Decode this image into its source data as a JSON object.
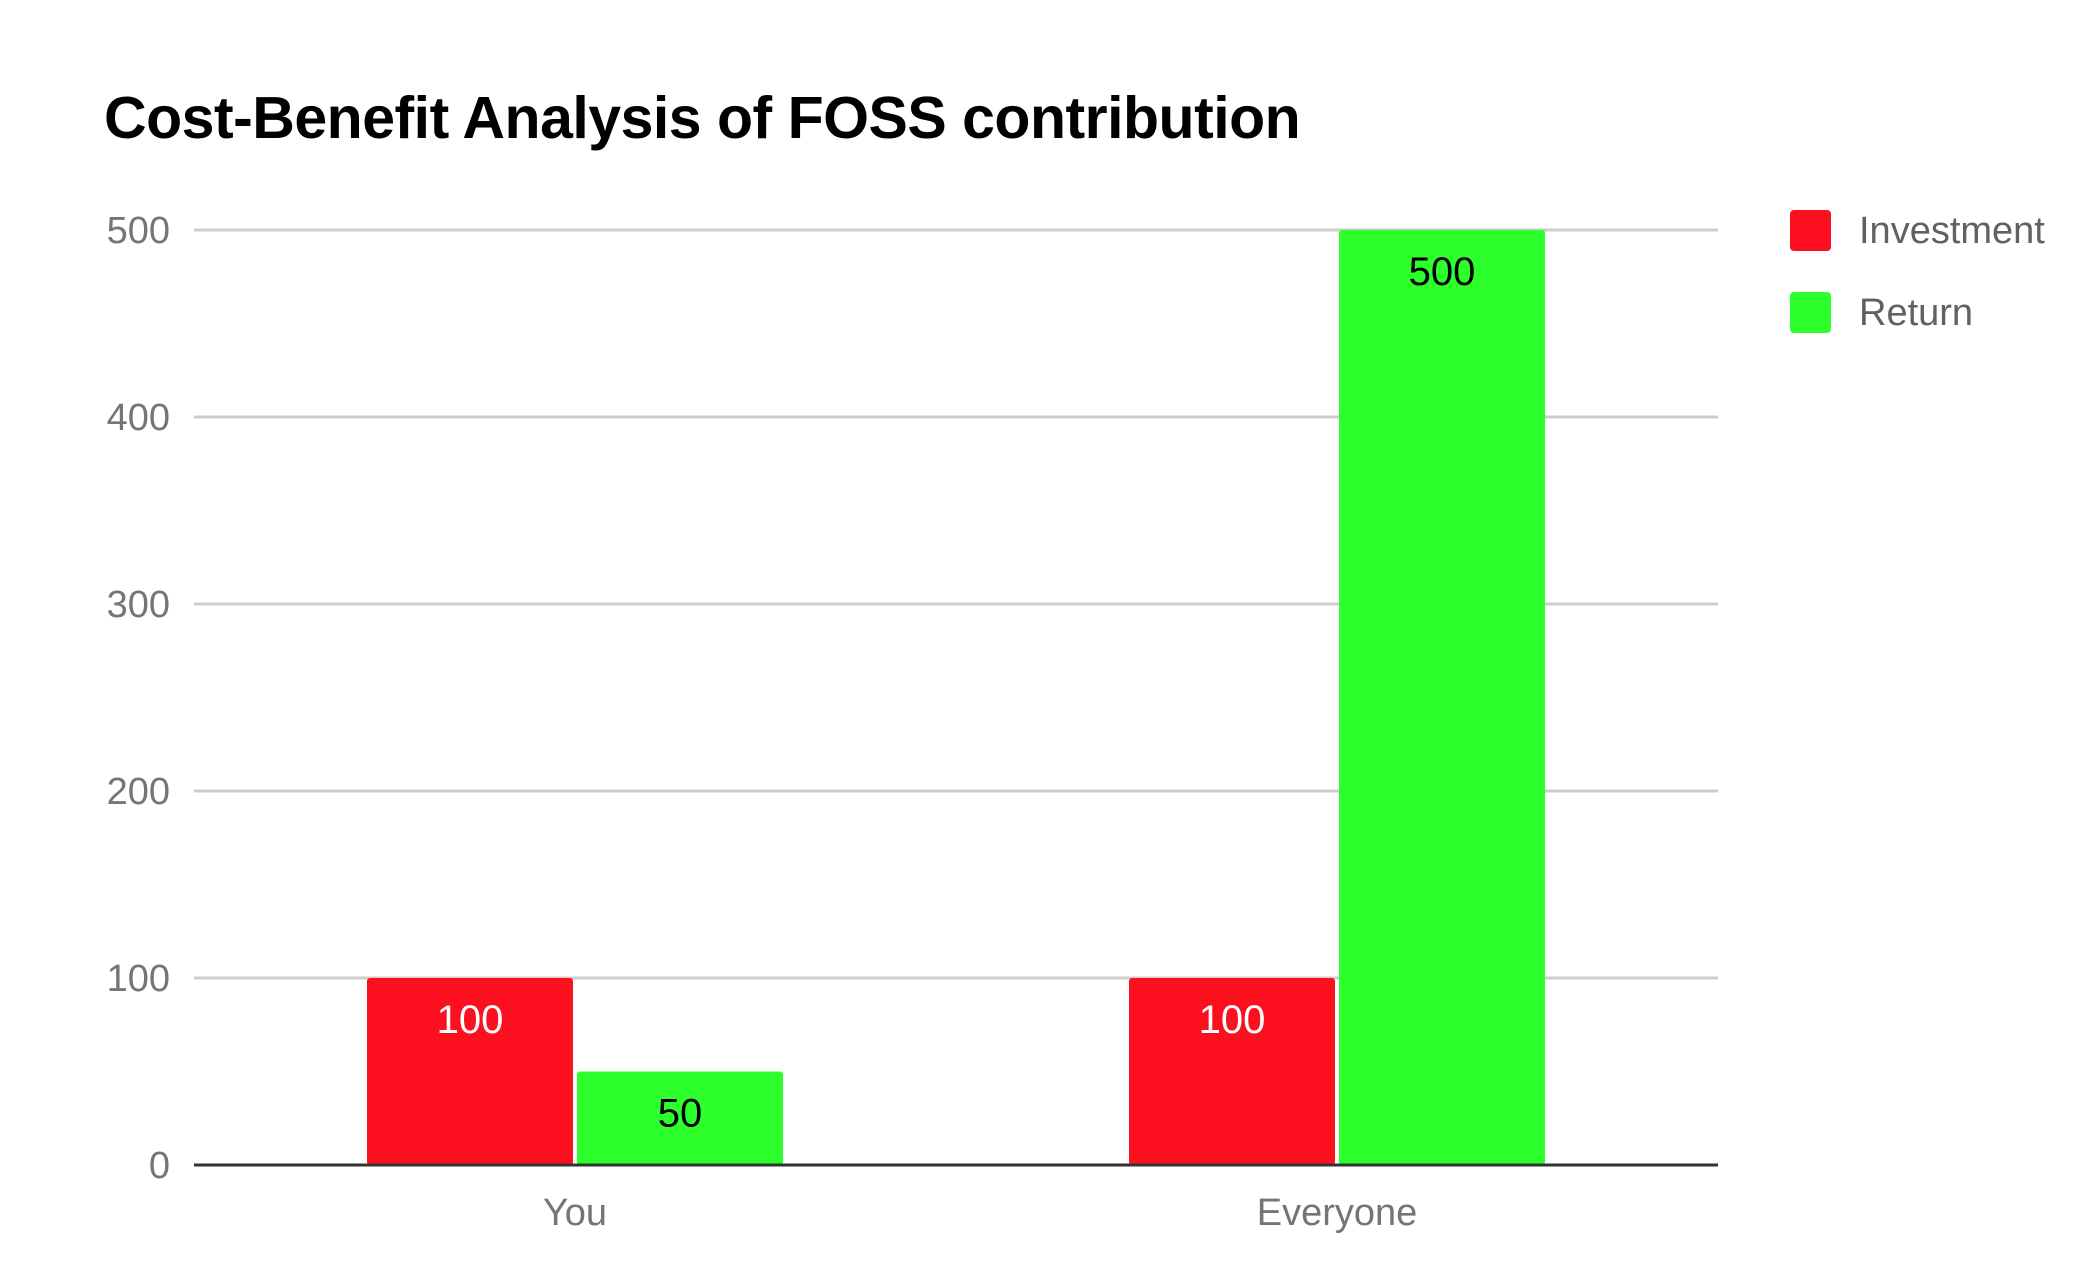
{
  "chart_data": {
    "type": "bar",
    "title": "Cost-Benefit Analysis of FOSS contribution",
    "xlabel": "",
    "ylabel": "",
    "categories": [
      "You",
      "Everyone"
    ],
    "series": [
      {
        "name": "Investment",
        "values": [
          100,
          100
        ],
        "color": "#fc0f1e",
        "label_color": "#ffffff"
      },
      {
        "name": "Return",
        "values": [
          50,
          500
        ],
        "color": "#2dff2d",
        "label_color": "#000000"
      }
    ],
    "ylim": [
      0,
      500
    ],
    "yticks": [
      0,
      100,
      200,
      300,
      400,
      500
    ],
    "grid": true,
    "legend": "right",
    "data_labels": true
  },
  "colors": {
    "grid": "#cccccc",
    "axis": "#333333",
    "tick_label": "#757575",
    "legend_label": "#616161"
  }
}
